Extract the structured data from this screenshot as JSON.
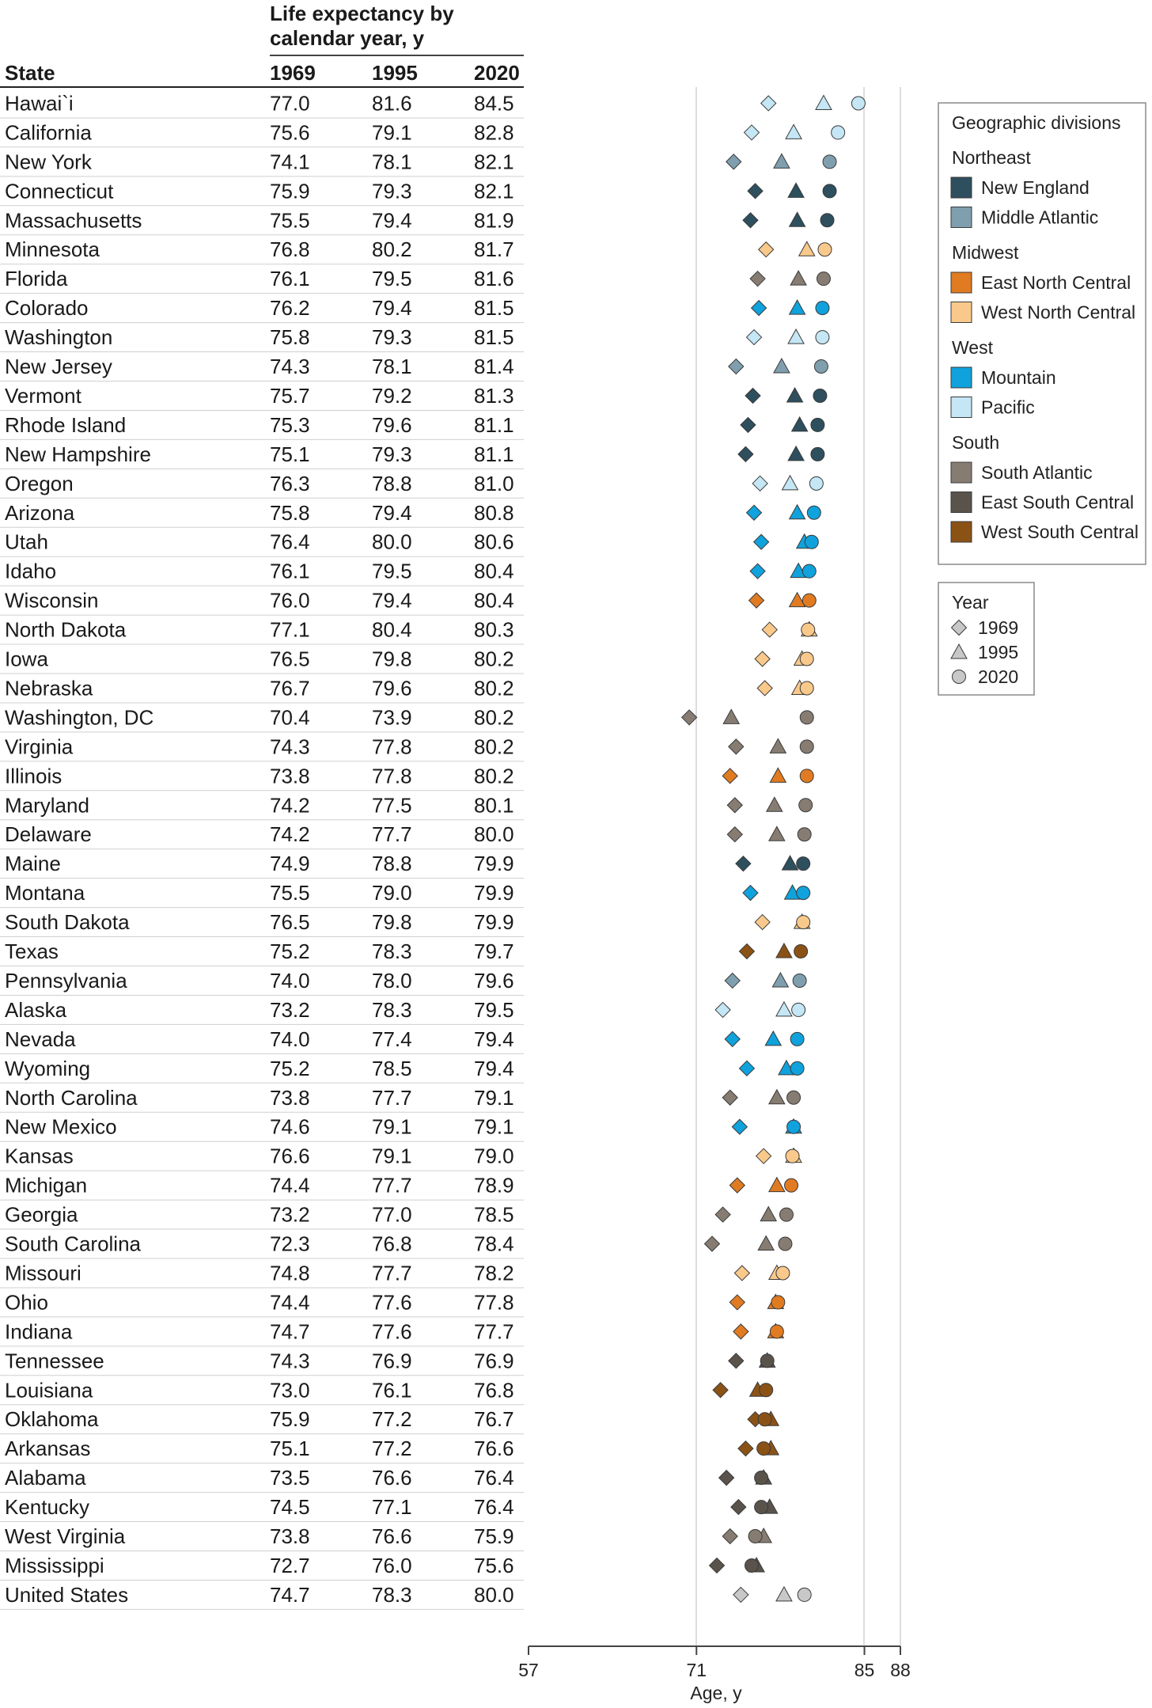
{
  "chart_data": {
    "type": "scatter",
    "title": "Life expectancy by calendar year, y",
    "columns": [
      "State",
      "1969",
      "1995",
      "2020"
    ],
    "xlabel": "Age, y",
    "xlim": [
      57,
      88
    ],
    "xticks": [
      57,
      71,
      85,
      88
    ],
    "rows": [
      {
        "state": "Hawai`i",
        "division": "pacific",
        "y1969": 77.0,
        "y1995": 81.6,
        "y2020": 84.5
      },
      {
        "state": "California",
        "division": "pacific",
        "y1969": 75.6,
        "y1995": 79.1,
        "y2020": 82.8
      },
      {
        "state": "New York",
        "division": "middle_atlantic",
        "y1969": 74.1,
        "y1995": 78.1,
        "y2020": 82.1
      },
      {
        "state": "Connecticut",
        "division": "new_england",
        "y1969": 75.9,
        "y1995": 79.3,
        "y2020": 82.1
      },
      {
        "state": "Massachusetts",
        "division": "new_england",
        "y1969": 75.5,
        "y1995": 79.4,
        "y2020": 81.9
      },
      {
        "state": "Minnesota",
        "division": "west_north_central",
        "y1969": 76.8,
        "y1995": 80.2,
        "y2020": 81.7
      },
      {
        "state": "Florida",
        "division": "south_atlantic",
        "y1969": 76.1,
        "y1995": 79.5,
        "y2020": 81.6
      },
      {
        "state": "Colorado",
        "division": "mountain",
        "y1969": 76.2,
        "y1995": 79.4,
        "y2020": 81.5
      },
      {
        "state": "Washington",
        "division": "pacific",
        "y1969": 75.8,
        "y1995": 79.3,
        "y2020": 81.5
      },
      {
        "state": "New Jersey",
        "division": "middle_atlantic",
        "y1969": 74.3,
        "y1995": 78.1,
        "y2020": 81.4
      },
      {
        "state": "Vermont",
        "division": "new_england",
        "y1969": 75.7,
        "y1995": 79.2,
        "y2020": 81.3
      },
      {
        "state": "Rhode Island",
        "division": "new_england",
        "y1969": 75.3,
        "y1995": 79.6,
        "y2020": 81.1
      },
      {
        "state": "New Hampshire",
        "division": "new_england",
        "y1969": 75.1,
        "y1995": 79.3,
        "y2020": 81.1
      },
      {
        "state": "Oregon",
        "division": "pacific",
        "y1969": 76.3,
        "y1995": 78.8,
        "y2020": 81.0
      },
      {
        "state": "Arizona",
        "division": "mountain",
        "y1969": 75.8,
        "y1995": 79.4,
        "y2020": 80.8
      },
      {
        "state": "Utah",
        "division": "mountain",
        "y1969": 76.4,
        "y1995": 80.0,
        "y2020": 80.6
      },
      {
        "state": "Idaho",
        "division": "mountain",
        "y1969": 76.1,
        "y1995": 79.5,
        "y2020": 80.4
      },
      {
        "state": "Wisconsin",
        "division": "east_north_central",
        "y1969": 76.0,
        "y1995": 79.4,
        "y2020": 80.4
      },
      {
        "state": "North Dakota",
        "division": "west_north_central",
        "y1969": 77.1,
        "y1995": 80.4,
        "y2020": 80.3
      },
      {
        "state": "Iowa",
        "division": "west_north_central",
        "y1969": 76.5,
        "y1995": 79.8,
        "y2020": 80.2
      },
      {
        "state": "Nebraska",
        "division": "west_north_central",
        "y1969": 76.7,
        "y1995": 79.6,
        "y2020": 80.2
      },
      {
        "state": "Washington, DC",
        "division": "south_atlantic",
        "y1969": 70.4,
        "y1995": 73.9,
        "y2020": 80.2
      },
      {
        "state": "Virginia",
        "division": "south_atlantic",
        "y1969": 74.3,
        "y1995": 77.8,
        "y2020": 80.2
      },
      {
        "state": "Illinois",
        "division": "east_north_central",
        "y1969": 73.8,
        "y1995": 77.8,
        "y2020": 80.2
      },
      {
        "state": "Maryland",
        "division": "south_atlantic",
        "y1969": 74.2,
        "y1995": 77.5,
        "y2020": 80.1
      },
      {
        "state": "Delaware",
        "division": "south_atlantic",
        "y1969": 74.2,
        "y1995": 77.7,
        "y2020": 80.0
      },
      {
        "state": "Maine",
        "division": "new_england",
        "y1969": 74.9,
        "y1995": 78.8,
        "y2020": 79.9
      },
      {
        "state": "Montana",
        "division": "mountain",
        "y1969": 75.5,
        "y1995": 79.0,
        "y2020": 79.9
      },
      {
        "state": "South Dakota",
        "division": "west_north_central",
        "y1969": 76.5,
        "y1995": 79.8,
        "y2020": 79.9
      },
      {
        "state": "Texas",
        "division": "west_south_central",
        "y1969": 75.2,
        "y1995": 78.3,
        "y2020": 79.7
      },
      {
        "state": "Pennsylvania",
        "division": "middle_atlantic",
        "y1969": 74.0,
        "y1995": 78.0,
        "y2020": 79.6
      },
      {
        "state": "Alaska",
        "division": "pacific",
        "y1969": 73.2,
        "y1995": 78.3,
        "y2020": 79.5
      },
      {
        "state": "Nevada",
        "division": "mountain",
        "y1969": 74.0,
        "y1995": 77.4,
        "y2020": 79.4
      },
      {
        "state": "Wyoming",
        "division": "mountain",
        "y1969": 75.2,
        "y1995": 78.5,
        "y2020": 79.4
      },
      {
        "state": "North Carolina",
        "division": "south_atlantic",
        "y1969": 73.8,
        "y1995": 77.7,
        "y2020": 79.1
      },
      {
        "state": "New Mexico",
        "division": "mountain",
        "y1969": 74.6,
        "y1995": 79.1,
        "y2020": 79.1
      },
      {
        "state": "Kansas",
        "division": "west_north_central",
        "y1969": 76.6,
        "y1995": 79.1,
        "y2020": 79.0
      },
      {
        "state": "Michigan",
        "division": "east_north_central",
        "y1969": 74.4,
        "y1995": 77.7,
        "y2020": 78.9
      },
      {
        "state": "Georgia",
        "division": "south_atlantic",
        "y1969": 73.2,
        "y1995": 77.0,
        "y2020": 78.5
      },
      {
        "state": "South Carolina",
        "division": "south_atlantic",
        "y1969": 72.3,
        "y1995": 76.8,
        "y2020": 78.4
      },
      {
        "state": "Missouri",
        "division": "west_north_central",
        "y1969": 74.8,
        "y1995": 77.7,
        "y2020": 78.2
      },
      {
        "state": "Ohio",
        "division": "east_north_central",
        "y1969": 74.4,
        "y1995": 77.6,
        "y2020": 77.8
      },
      {
        "state": "Indiana",
        "division": "east_north_central",
        "y1969": 74.7,
        "y1995": 77.6,
        "y2020": 77.7
      },
      {
        "state": "Tennessee",
        "division": "east_south_central",
        "y1969": 74.3,
        "y1995": 76.9,
        "y2020": 76.9
      },
      {
        "state": "Louisiana",
        "division": "west_south_central",
        "y1969": 73.0,
        "y1995": 76.1,
        "y2020": 76.8
      },
      {
        "state": "Oklahoma",
        "division": "west_south_central",
        "y1969": 75.9,
        "y1995": 77.2,
        "y2020": 76.7
      },
      {
        "state": "Arkansas",
        "division": "west_south_central",
        "y1969": 75.1,
        "y1995": 77.2,
        "y2020": 76.6
      },
      {
        "state": "Alabama",
        "division": "east_south_central",
        "y1969": 73.5,
        "y1995": 76.6,
        "y2020": 76.4
      },
      {
        "state": "Kentucky",
        "division": "east_south_central",
        "y1969": 74.5,
        "y1995": 77.1,
        "y2020": 76.4
      },
      {
        "state": "West Virginia",
        "division": "south_atlantic",
        "y1969": 73.8,
        "y1995": 76.6,
        "y2020": 75.9
      },
      {
        "state": "Mississippi",
        "division": "east_south_central",
        "y1969": 72.7,
        "y1995": 76.0,
        "y2020": 75.6
      },
      {
        "state": "United States",
        "division": "us",
        "y1969": 74.7,
        "y1995": 78.3,
        "y2020": 80.0
      }
    ],
    "legend": {
      "title": "Geographic divisions",
      "groups": [
        {
          "region": "Northeast",
          "items": [
            {
              "key": "new_england",
              "label": "New England",
              "color": "#2d4f5e"
            },
            {
              "key": "middle_atlantic",
              "label": "Middle Atlantic",
              "color": "#7f9fae"
            }
          ]
        },
        {
          "region": "Midwest",
          "items": [
            {
              "key": "east_north_central",
              "label": "East North Central",
              "color": "#e07b22"
            },
            {
              "key": "west_north_central",
              "label": "West North Central",
              "color": "#f9c98b"
            }
          ]
        },
        {
          "region": "West",
          "items": [
            {
              "key": "mountain",
              "label": "Mountain",
              "color": "#0fa2dc"
            },
            {
              "key": "pacific",
              "label": "Pacific",
              "color": "#c4e6f5"
            }
          ]
        },
        {
          "region": "South",
          "items": [
            {
              "key": "south_atlantic",
              "label": "South Atlantic",
              "color": "#867c72"
            },
            {
              "key": "east_south_central",
              "label": "East South Central",
              "color": "#59534c"
            },
            {
              "key": "west_south_central",
              "label": "West South Central",
              "color": "#8b5216"
            }
          ]
        }
      ],
      "us_color": "#c8c8c8",
      "year_title": "Year",
      "year_items": [
        {
          "label": "1969",
          "shape": "diamond"
        },
        {
          "label": "1995",
          "shape": "triangle"
        },
        {
          "label": "2020",
          "shape": "circle"
        }
      ]
    }
  }
}
